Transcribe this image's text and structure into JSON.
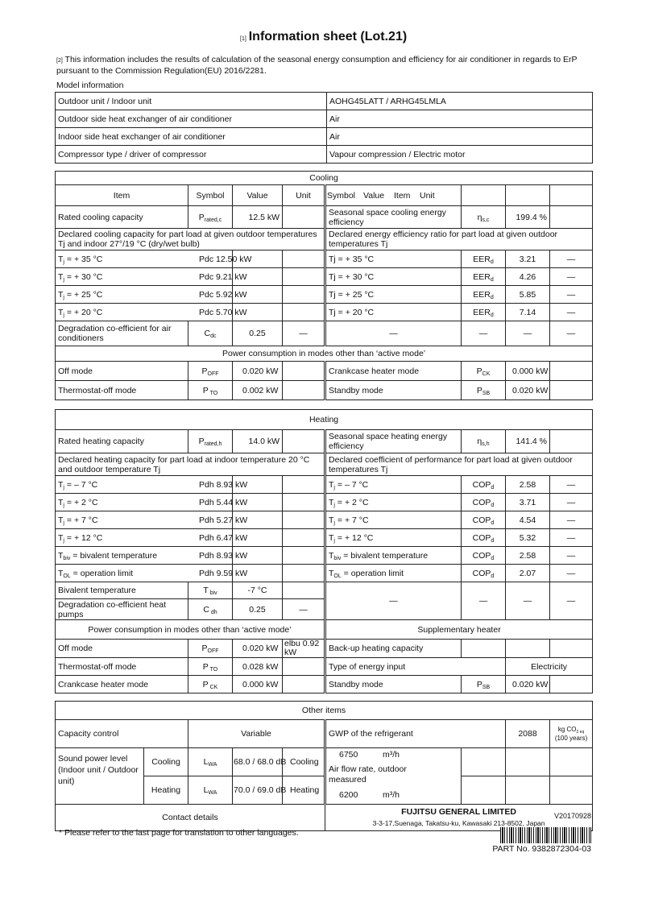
{
  "header": {
    "ref1": "[1]",
    "title": "Information sheet (Lot.21)",
    "ref2": "[2]",
    "intro": "This information includes the results of calculation of the seasonal energy consumption and efficiency for air conditioner in regards to ErP pursuant to the Commission Regulation(EU) 2016/2281."
  },
  "model": {
    "label": "Model information",
    "rows": [
      {
        "label": "Outdoor unit / Indoor unit",
        "value": "AOHG45LATT / ARHG45LMLA"
      },
      {
        "label": "Outdoor side heat exchanger of air conditioner",
        "value": "Air"
      },
      {
        "label": "Indoor side heat exchanger of air conditioner",
        "value": "Air"
      },
      {
        "label": "Compressor type / driver of compressor",
        "value": "Vapour compression / Electric motor"
      }
    ]
  },
  "cooling": {
    "title": "Cooling",
    "header": {
      "item": "Item",
      "symbol": "Symbol",
      "value": "Value",
      "unit": "Unit",
      "r_symbol": "Symbol",
      "r_value": "Value",
      "r_item": "Item",
      "r_unit": "Unit"
    },
    "rated": {
      "label": "Rated cooling capacity",
      "sym": "P",
      "sym_sub": "rated,c",
      "value": "12.5 kW",
      "r_label": "Seasonal space cooling energy efficiency",
      "r_sym": "η",
      "r_sym_sub": "s,c",
      "r_value": "199.4 %"
    },
    "declared_left": "Declared cooling capacity for part load at given outdoor temperatures Tj and indoor 27°/19 °C (dry/wet bulb)",
    "declared_right": "Declared energy efficiency ratio for part load at given outdoor temperatures Tj",
    "rows": [
      {
        "t": "T",
        "ts": "j",
        "tr": " = + 35 °C",
        "value": "Pdc 12.50 kW",
        "r_label": "Tj = + 35 °C",
        "r_sym": "EER",
        "r_sub": "d",
        "r_value": "3.21",
        "r_unit": "—"
      },
      {
        "t": "T",
        "ts": "j",
        "tr": " = + 30 °C",
        "value": "Pdc 9.21 kW",
        "r_label": "Tj = + 30 °C",
        "r_sym": "EER",
        "r_sub": "d",
        "r_value": "4.26",
        "r_unit": "—"
      },
      {
        "t": "T",
        "ts": "j",
        "tr": " = + 25 °C",
        "value": "Pdc 5.92 kW",
        "r_label": "Tj = + 25 °C",
        "r_sym": "EER",
        "r_sub": "d",
        "r_value": "5.85",
        "r_unit": "—"
      },
      {
        "t": "T",
        "ts": "j",
        "tr": " = + 20 °C",
        "value": "Pdc 5.70 kW",
        "r_label": "Tj = + 20 °C",
        "r_sym": "EER",
        "r_sub": "d",
        "r_value": "7.14",
        "r_unit": "—"
      }
    ],
    "degradation": {
      "label": "Degradation co-efficient for air conditioners",
      "sym": "C",
      "sym_sub": "dc",
      "value": "0.25",
      "unit": "—",
      "r1": "—",
      "r2": "—",
      "r3": "—",
      "r4": "—"
    },
    "power_title": "Power consumption in modes other than ‘active mode’",
    "power": [
      {
        "label": "Off mode",
        "sym": "P",
        "sub": "OFF",
        "value": "0.020 kW",
        "r_label": "Crankcase heater mode",
        "r_sym": "P",
        "r_sub": "CK",
        "r_value": "0.000 kW"
      },
      {
        "label": "Thermostat-off mode",
        "sym": "P",
        "sub": " TO",
        "value": "0.002 kW",
        "r_label": "Standby mode",
        "r_sym": "P",
        "r_sub": "SB",
        "r_value": "0.020 kW"
      }
    ]
  },
  "heating": {
    "title": "Heating",
    "rated": {
      "label": "Rated heating capacity",
      "sym": "P",
      "sym_sub": "rated,h",
      "value": "14.0 kW",
      "r_label": "Seasonal space heating energy efficiency",
      "r_sym": "η",
      "r_sym_sub": "s,h",
      "r_value": "141.4 %"
    },
    "declared_left": "Declared heating capacity for part load at indoor temperature 20 °C and outdoor temperature Tj",
    "declared_right": "Declared coefficient of performance for part load at given outdoor temperatures Tj",
    "rows": [
      {
        "t": "T",
        "ts": "j",
        "tr": " = – 7 °C",
        "value": "Pdh 8.93 kW",
        "r_value": "2.58"
      },
      {
        "t": "T",
        "ts": "j",
        "tr": " = + 2 °C",
        "value": "Pdh 5.44 kW",
        "r_value": "3.71"
      },
      {
        "t": "T",
        "ts": "j",
        "tr": " = + 7 °C",
        "value": "Pdh 5.27 kW",
        "r_value": "4.54"
      },
      {
        "t": "T",
        "ts": "j",
        "tr": " = + 12 °C",
        "value": "Pdh 6.47 kW",
        "r_value": "5.32"
      },
      {
        "t": "T",
        "ts": "biv",
        "tr": " = bivalent temperature",
        "value": "Pdh 8.93 kW",
        "r_value": "2.58"
      },
      {
        "t": "T",
        "ts": "OL",
        "tr": " = operation limit",
        "value": "Pdh 9.59 kW",
        "r_value": "2.07"
      }
    ],
    "cop_sym": "COP",
    "cop_sub": "d",
    "dash": "—",
    "bivalent": {
      "label": "Bivalent temperature",
      "sym": "T",
      "sub": " biv",
      "value": "-7 °C"
    },
    "degradation": {
      "label": "Degradation co-efficient heat pumps",
      "sym": "C",
      "sub": " dh",
      "value": "0.25",
      "unit": "—"
    },
    "power_title": "Power consumption in modes other than ‘active mode’",
    "supp_title": "Supplementary heater",
    "power": [
      {
        "label": "Off mode",
        "sym": "P",
        "sub": "OFF",
        "value": "0.020 kW",
        "unit": "elbu 0.92 kW"
      },
      {
        "label": "Thermostat-off mode",
        "sym": "P",
        "sub": " TO",
        "value": "0.028 kW"
      },
      {
        "label": "Crankcase heater mode",
        "sym": "P",
        "sub": " CK",
        "value": "0.000 kW"
      }
    ],
    "backup": "Back-up heating capacity",
    "energy_type": "Type of energy input",
    "energy_value": "Electricity",
    "standby": {
      "label": "Standby mode",
      "sym": "P",
      "sub": "SB",
      "value": "0.020 kW"
    }
  },
  "other": {
    "title": "Other items",
    "capacity_label": "Capacity control",
    "capacity_value": "Variable",
    "gwp_label": "GWP of the refrigerant",
    "gwp_value": "2088",
    "gwp_unit": "kg CO",
    "gwp_unit_sub": "2 eq",
    "gwp_unit2": "(100 years)",
    "sound_label": "Sound power level (Indoor unit / Outdoor unit)",
    "sound": [
      {
        "mode": "Cooling",
        "sym": "L",
        "sub": "WA",
        "value": "68.0 / 68.0 dB",
        "extra": "Cooling",
        "flow": "6750",
        "flow_unit": "m³/h"
      },
      {
        "mode": "Heating",
        "sym": "L",
        "sub": "WA",
        "value": "70.0 / 69.0 dB",
        "extra": "Heating",
        "flow": "6200",
        "flow_unit": "m³/h"
      }
    ],
    "airflow_label": "Air flow rate, outdoor measured",
    "contact_label": "Contact details",
    "company": "FUJITSU GENERAL LIMITED",
    "address": "3-3-17,Suenaga, Takatsu-ku, Kawasaki 213-8502, Japan"
  },
  "footer": {
    "version": "V20170928",
    "note": "* Please refer to the last page for translation to other languages.",
    "part": "PART No.  9382872304-03"
  }
}
